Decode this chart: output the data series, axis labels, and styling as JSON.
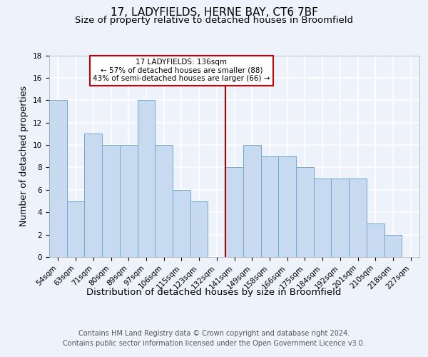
{
  "title": "17, LADYFIELDS, HERNE BAY, CT6 7BF",
  "subtitle": "Size of property relative to detached houses in Broomfield",
  "xlabel": "Distribution of detached houses by size in Broomfield",
  "ylabel": "Number of detached properties",
  "footer_line1": "Contains HM Land Registry data © Crown copyright and database right 2024.",
  "footer_line2": "Contains public sector information licensed under the Open Government Licence v3.0.",
  "bin_labels": [
    "54sqm",
    "63sqm",
    "71sqm",
    "80sqm",
    "89sqm",
    "97sqm",
    "106sqm",
    "115sqm",
    "123sqm",
    "132sqm",
    "141sqm",
    "149sqm",
    "158sqm",
    "166sqm",
    "175sqm",
    "184sqm",
    "192sqm",
    "201sqm",
    "210sqm",
    "218sqm",
    "227sqm"
  ],
  "values": [
    14,
    5,
    11,
    10,
    10,
    14,
    10,
    6,
    5,
    0,
    8,
    10,
    9,
    9,
    8,
    7,
    7,
    7,
    3,
    2,
    0
  ],
  "bar_color": "#c8daf0",
  "bar_edge_color": "#6fa8d0",
  "marker_line_color": "#aa0000",
  "annotation_line1": "17 LADYFIELDS: 136sqm",
  "annotation_line2": "← 57% of detached houses are smaller (88)",
  "annotation_line3": "43% of semi-detached houses are larger (66) →",
  "annotation_box_edge_color": "#cc0000",
  "annotation_box_face_color": "#ffffff",
  "ylim": [
    0,
    18
  ],
  "yticks": [
    0,
    2,
    4,
    6,
    8,
    10,
    12,
    14,
    16,
    18
  ],
  "background_color": "#eef2fa",
  "plot_background_color": "#eef2fa",
  "grid_color": "#ffffff",
  "title_fontsize": 11,
  "subtitle_fontsize": 9.5,
  "ylabel_fontsize": 9,
  "xlabel_fontsize": 9.5,
  "tick_fontsize": 7.5,
  "annotation_fontsize": 7.5,
  "footer_fontsize": 7
}
